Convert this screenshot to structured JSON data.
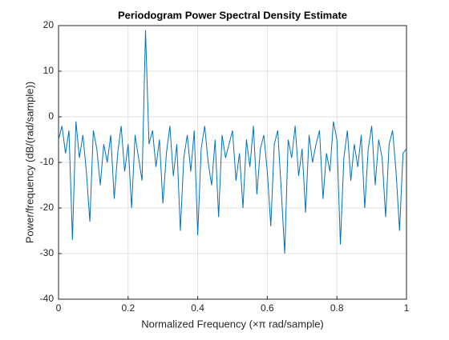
{
  "chart_data": {
    "type": "line",
    "title": "Periodogram Power Spectral Density Estimate",
    "xlabel": "Normalized  Frequency    (×π  rad/sample)",
    "ylabel": "Power/frequency (dB/(rad/sample))",
    "x": [
      0,
      0.01,
      0.02,
      0.03,
      0.04,
      0.05,
      0.06,
      0.07,
      0.08,
      0.09,
      0.1,
      0.11,
      0.12,
      0.13,
      0.14,
      0.15,
      0.16,
      0.17,
      0.18,
      0.19,
      0.2,
      0.21,
      0.22,
      0.23,
      0.24,
      0.25,
      0.26,
      0.27,
      0.28,
      0.29,
      0.3,
      0.31,
      0.32,
      0.33,
      0.34,
      0.35,
      0.36,
      0.37,
      0.38,
      0.39,
      0.4,
      0.41,
      0.42,
      0.43,
      0.44,
      0.45,
      0.46,
      0.47,
      0.48,
      0.49,
      0.5,
      0.51,
      0.52,
      0.53,
      0.54,
      0.55,
      0.56,
      0.57,
      0.58,
      0.59,
      0.6,
      0.61,
      0.62,
      0.63,
      0.64,
      0.65,
      0.66,
      0.67,
      0.68,
      0.69,
      0.7,
      0.71,
      0.72,
      0.73,
      0.74,
      0.75,
      0.76,
      0.77,
      0.78,
      0.79,
      0.8,
      0.81,
      0.82,
      0.83,
      0.84,
      0.85,
      0.86,
      0.87,
      0.88,
      0.89,
      0.9,
      0.91,
      0.92,
      0.93,
      0.94,
      0.95,
      0.96,
      0.97,
      0.98,
      0.99,
      1
    ],
    "values": [
      -5,
      -2,
      -8,
      -3,
      -27,
      -1,
      -9,
      -4,
      -12,
      -23,
      -3,
      -7,
      -15,
      -6,
      -10,
      -4,
      -18,
      -8,
      -2,
      -12,
      -6,
      -20,
      -4,
      -9,
      -14,
      19,
      -6,
      -3,
      -11,
      -5,
      -19,
      -8,
      -2,
      -13,
      -6,
      -25,
      -9,
      -4,
      -12,
      -3,
      -26,
      -7,
      -2,
      -10,
      -15,
      -5,
      -22,
      -4,
      -9,
      -6,
      -3,
      -14,
      -8,
      -20,
      -5,
      -11,
      -2,
      -17,
      -7,
      -4,
      -12,
      -24,
      -6,
      -3,
      -16,
      -30,
      -5,
      -9,
      -2,
      -13,
      -7,
      -21,
      -4,
      -10,
      -6,
      -3,
      -18,
      -8,
      -12,
      -1,
      -5,
      -28,
      -9,
      -3,
      -14,
      -6,
      -11,
      -4,
      -20,
      -7,
      -2,
      -15,
      -5,
      -9,
      -22,
      -6,
      -3,
      -12,
      -25,
      -8,
      -7
    ],
    "color": "#0072bd",
    "xlim": [
      0,
      1
    ],
    "xticks": [
      0,
      0.2,
      0.4,
      0.6,
      0.8,
      1
    ],
    "ylim": [
      -40,
      20
    ],
    "yticks": [
      -40,
      -30,
      -20,
      -10,
      0,
      10,
      20
    ],
    "grid": true
  }
}
